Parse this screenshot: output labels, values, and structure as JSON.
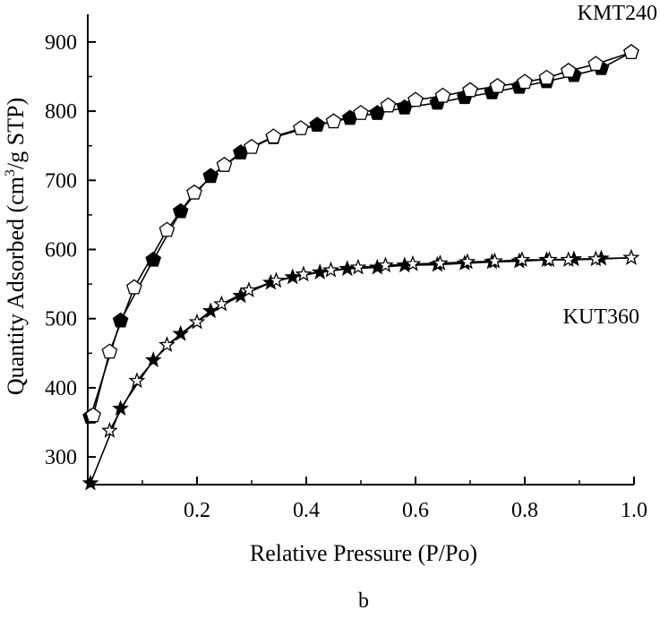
{
  "chart_data": {
    "type": "line",
    "xlabel": "Relative Pressure (P/Po)",
    "ylabel_main": "Quantity Adsorbed (cm",
    "ylabel_sup": "3",
    "ylabel_rest": "/g STP)",
    "caption": "b",
    "xlim": [
      0.0,
      1.0
    ],
    "ylim": [
      260,
      940
    ],
    "x_ticks": [
      0.2,
      0.4,
      0.6,
      0.8,
      1.0
    ],
    "x_tick_labels": [
      "0.2",
      "0.4",
      "0.6",
      "0.8",
      "1.0"
    ],
    "y_ticks": [
      300,
      400,
      500,
      600,
      700,
      800,
      900
    ],
    "y_tick_labels": [
      "300",
      "400",
      "500",
      "600",
      "700",
      "800",
      "900"
    ],
    "series": [
      {
        "name": "KMT240",
        "marker": "pentagon",
        "branch": "adsorption",
        "fill": "#000000",
        "x": [
          0.005,
          0.06,
          0.12,
          0.17,
          0.225,
          0.28,
          0.34,
          0.42,
          0.48,
          0.53,
          0.58,
          0.64,
          0.69,
          0.74,
          0.79,
          0.84,
          0.89,
          0.94,
          0.995
        ],
        "y": [
          358,
          497,
          585,
          655,
          706,
          740,
          762,
          780,
          790,
          797,
          805,
          812,
          820,
          827,
          835,
          843,
          852,
          862,
          885
        ]
      },
      {
        "name": "KMT240",
        "marker": "pentagon",
        "branch": "desorption",
        "fill": "#ffffff",
        "x": [
          0.01,
          0.04,
          0.085,
          0.145,
          0.195,
          0.25,
          0.3,
          0.34,
          0.39,
          0.45,
          0.5,
          0.55,
          0.6,
          0.65,
          0.7,
          0.75,
          0.8,
          0.84,
          0.88,
          0.93,
          0.995
        ],
        "y": [
          360,
          452,
          545,
          628,
          682,
          722,
          748,
          763,
          775,
          785,
          797,
          808,
          816,
          822,
          830,
          836,
          842,
          848,
          858,
          868,
          885
        ]
      },
      {
        "name": "KUT360",
        "marker": "star",
        "branch": "adsorption",
        "fill": "#000000",
        "x": [
          0.005,
          0.06,
          0.12,
          0.17,
          0.225,
          0.28,
          0.335,
          0.375,
          0.425,
          0.475,
          0.53,
          0.58,
          0.64,
          0.69,
          0.74,
          0.79,
          0.84,
          0.89,
          0.94,
          0.995
        ],
        "y": [
          262,
          370,
          440,
          478,
          511,
          533,
          552,
          560,
          567,
          572,
          574,
          577,
          578,
          580,
          582,
          583,
          585,
          586,
          587,
          588
        ]
      },
      {
        "name": "KUT360",
        "marker": "star",
        "branch": "desorption",
        "fill": "#ffffff",
        "x": [
          0.04,
          0.09,
          0.145,
          0.2,
          0.245,
          0.295,
          0.345,
          0.395,
          0.445,
          0.495,
          0.545,
          0.595,
          0.645,
          0.695,
          0.745,
          0.795,
          0.845,
          0.88,
          0.93,
          0.995
        ],
        "y": [
          338,
          410,
          462,
          495,
          521,
          541,
          555,
          564,
          570,
          574,
          577,
          579,
          580,
          582,
          583,
          585,
          585,
          585,
          586,
          588
        ]
      }
    ],
    "annotations": [
      {
        "text": "KMT240",
        "near": "top-right"
      },
      {
        "text": "KUT360",
        "near": "right-middle"
      }
    ]
  }
}
